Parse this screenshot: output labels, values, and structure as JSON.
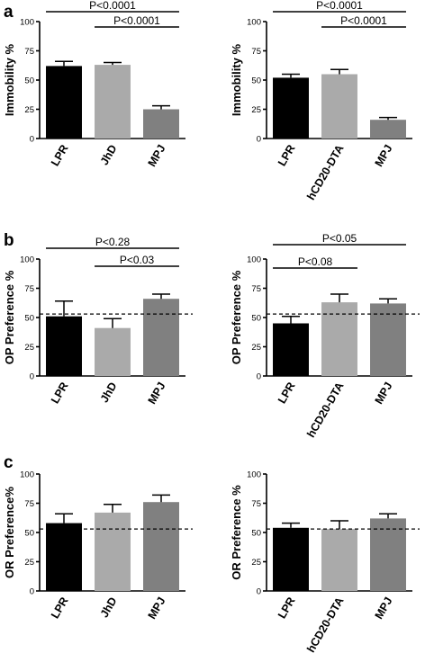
{
  "panels": [
    {
      "letter": "a"
    },
    {
      "letter": "b"
    },
    {
      "letter": "c"
    }
  ],
  "colors": {
    "LPR": "#000000",
    "JhD": "#aaaaaa",
    "hCD20-DTA": "#aaaaaa",
    "MPJ": "#808080"
  },
  "chart_data": [
    {
      "type": "bar",
      "panel": "a",
      "categories": [
        "LPR",
        "JhD",
        "MPJ"
      ],
      "values": [
        62,
        63,
        25
      ],
      "errors": [
        4,
        2,
        3
      ],
      "ylabel": "Immobility %",
      "ylim": [
        0,
        100
      ],
      "yticks": [
        "0",
        "25",
        "50",
        "75",
        "100"
      ],
      "reference_line": null,
      "significance": [
        {
          "from": 0,
          "to": 2,
          "label": "P<0.0001"
        },
        {
          "from": 1,
          "to": 2,
          "label": "P<0.0001"
        }
      ]
    },
    {
      "type": "bar",
      "panel": "a",
      "categories": [
        "LPR",
        "hCD20-DTA",
        "MPJ"
      ],
      "values": [
        52,
        55,
        16
      ],
      "errors": [
        3,
        4,
        2
      ],
      "ylabel": "Immobility %",
      "ylim": [
        0,
        100
      ],
      "yticks": [
        "0",
        "25",
        "50",
        "75",
        "100"
      ],
      "reference_line": null,
      "significance": [
        {
          "from": 0,
          "to": 2,
          "label": "P<0.0001"
        },
        {
          "from": 1,
          "to": 2,
          "label": "P<0.0001"
        }
      ]
    },
    {
      "type": "bar",
      "panel": "b",
      "categories": [
        "LPR",
        "JhD",
        "MPJ"
      ],
      "values": [
        51,
        41,
        66
      ],
      "errors": [
        13,
        8,
        4
      ],
      "ylabel": "OP Preference %",
      "ylim": [
        0,
        100
      ],
      "yticks": [
        "0",
        "25",
        "50",
        "75",
        "100"
      ],
      "reference_line": 53,
      "significance": [
        {
          "from": 0,
          "to": 2,
          "label": "P<0.28"
        },
        {
          "from": 1,
          "to": 2,
          "label": "P<0.03"
        }
      ]
    },
    {
      "type": "bar",
      "panel": "b",
      "categories": [
        "LPR",
        "hCD20-DTA",
        "MPJ"
      ],
      "values": [
        45,
        63,
        62
      ],
      "errors": [
        6,
        7,
        4
      ],
      "ylabel": "OP Preference %",
      "ylim": [
        0,
        100
      ],
      "yticks": [
        "0",
        "25",
        "50",
        "75",
        "100"
      ],
      "reference_line": 53,
      "significance": [
        {
          "from": 0,
          "to": 2,
          "label": "P<0.05"
        },
        {
          "from": 0,
          "to": 1,
          "label": "P<0.08"
        }
      ]
    },
    {
      "type": "bar",
      "panel": "c",
      "categories": [
        "LPR",
        "JhD",
        "MPJ"
      ],
      "values": [
        58,
        67,
        76
      ],
      "errors": [
        8,
        7,
        6
      ],
      "ylabel": "OR Preference%",
      "ylim": [
        0,
        100
      ],
      "yticks": [
        "0",
        "25",
        "50",
        "75",
        "100"
      ],
      "reference_line": 53,
      "significance": []
    },
    {
      "type": "bar",
      "panel": "c",
      "categories": [
        "LPR",
        "hCD20-DTA",
        "MPJ"
      ],
      "values": [
        54,
        53,
        62
      ],
      "errors": [
        4,
        7,
        4
      ],
      "ylabel": "OR Preference %",
      "ylim": [
        0,
        100
      ],
      "yticks": [
        "0",
        "25",
        "50",
        "75",
        "100"
      ],
      "reference_line": 53,
      "significance": []
    }
  ]
}
